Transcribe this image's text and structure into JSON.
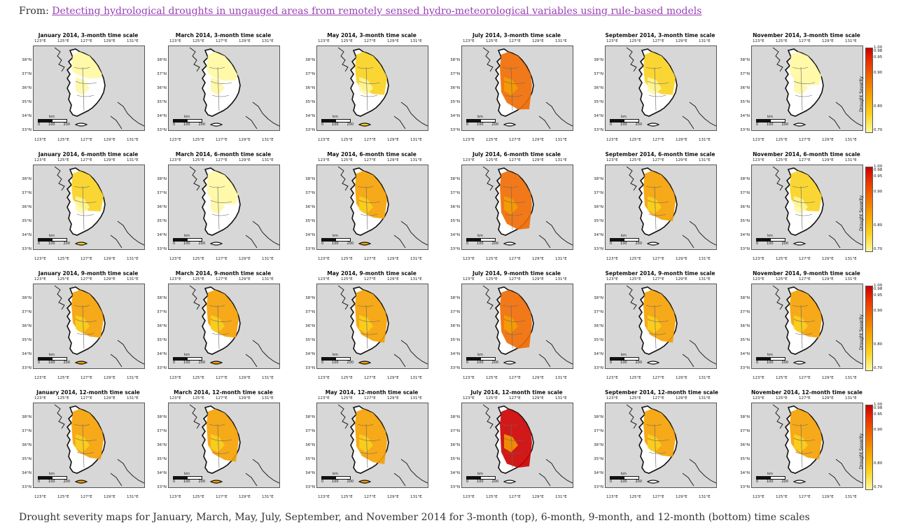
{
  "header": {
    "from_label": "From:",
    "link_text": "Detecting hydrological droughts in ungauged areas from remotely sensed hydro-meteorological variables using rule-based models"
  },
  "figure": {
    "months": [
      "January 2014",
      "March 2014",
      "May 2014",
      "July 2014",
      "September 2014",
      "November 2014"
    ],
    "scales": [
      "3-month time scale",
      "6-month time scale",
      "9-month time scale",
      "12-month time scale"
    ],
    "lon_ticks": [
      "123°E",
      "125°E",
      "127°E",
      "129°E",
      "131°E"
    ],
    "lat_ticks": [
      "38°N",
      "37°N",
      "36°N",
      "35°N",
      "34°N",
      "33°N"
    ],
    "scalebar_unit": "km",
    "scalebar_ticks": [
      "0",
      "100",
      "200"
    ],
    "colorbar": {
      "label": "Drought Severity",
      "ticks": [
        "1.00",
        "0.98",
        "0.95",
        "0.90",
        "0.80",
        "0.70"
      ],
      "colors": [
        "#cc0000",
        "#f06a00",
        "#f5a000",
        "#fad21e",
        "#fff8a0"
      ]
    },
    "severity_intensity": [
      [
        0.1,
        0.15,
        0.45,
        0.8,
        0.45,
        0.25
      ],
      [
        0.4,
        0.25,
        0.55,
        0.85,
        0.6,
        0.4
      ],
      [
        0.55,
        0.55,
        0.65,
        0.85,
        0.65,
        0.55
      ],
      [
        0.6,
        0.65,
        0.7,
        0.9,
        0.55,
        0.6
      ]
    ]
  },
  "caption": {
    "text": "Drought severity maps for January, March, May, July, September, and November 2014 for 3-month (top), 6-month, 9-month, and 12-month (bottom) time scales"
  }
}
